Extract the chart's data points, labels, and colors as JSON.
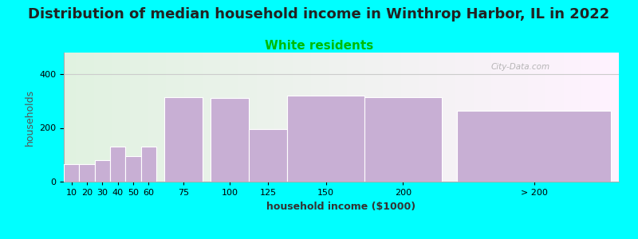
{
  "title": "Distribution of median household income in Winthrop Harbor, IL in 2022",
  "subtitle": "White residents",
  "xlabel": "household income ($1000)",
  "ylabel": "households",
  "background_color": "#00FFFF",
  "bar_color": "#c8afd4",
  "title_fontsize": 13,
  "subtitle_fontsize": 11,
  "subtitle_color": "#00bb00",
  "categories": [
    "10",
    "20",
    "30",
    "40",
    "50",
    "60",
    "75",
    "100",
    "125",
    "150",
    "200",
    "> 200"
  ],
  "values": [
    65,
    65,
    80,
    130,
    95,
    130,
    315,
    310,
    195,
    320,
    315,
    265
  ],
  "bar_centers": [
    10,
    20,
    30,
    40,
    50,
    60,
    82.5,
    112.5,
    137.5,
    175,
    225,
    310
  ],
  "bar_widths_data": [
    10,
    10,
    10,
    10,
    10,
    10,
    25,
    25,
    25,
    50,
    50,
    100
  ],
  "ylim": [
    0,
    480
  ],
  "yticks": [
    0,
    200,
    400
  ],
  "xlim": [
    5,
    365
  ],
  "watermark": "City-Data.com"
}
